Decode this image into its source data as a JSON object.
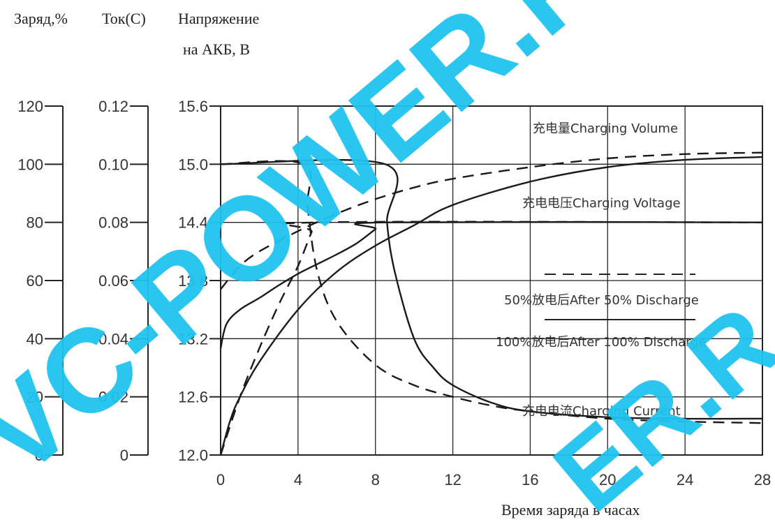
{
  "chart_data": {
    "type": "line",
    "axis_headers": {
      "charge": "Заряд,%",
      "current": "Ток(С)",
      "voltage_line1": "Напряжение",
      "voltage_line2": "на АКБ, В"
    },
    "xlabel": "Время заряда в часах",
    "x_ticks": [
      0,
      4,
      8,
      12,
      16,
      20,
      24,
      28
    ],
    "xlim": [
      0,
      28
    ],
    "voltage_ticks": [
      "12.0",
      "12.6",
      "13.2",
      "13.8",
      "14.4",
      "15.0",
      "15.6"
    ],
    "current_ticks": [
      "0",
      "0.02",
      "0.04",
      "0.06",
      "0.08",
      "0.10",
      "0.12"
    ],
    "charge_ticks": [
      "0",
      "20",
      "40",
      "60",
      "80",
      "100",
      "120"
    ],
    "ylim_voltage": [
      12.0,
      15.6
    ],
    "ylim_current": [
      0,
      0.12
    ],
    "ylim_charge": [
      0,
      120
    ],
    "grid": true,
    "annotations": {
      "charging_volume": "充电量Charging Volume",
      "charging_voltage": "充电电压Charging Voltage",
      "after_50": "50%放电后After 50% Discharge",
      "after_100": "100%放电后After 100% Discharge",
      "charging_current": "充电电流Charging Current"
    },
    "series": [
      {
        "name": "充电量Charging Volume — 50%放电后After 50% Discharge",
        "axis": "charge",
        "style": "dashed",
        "x": [
          0,
          1,
          2,
          4,
          6,
          8,
          10,
          12,
          16,
          20,
          24,
          28
        ],
        "y": [
          57,
          65,
          70,
          77,
          83,
          88,
          92,
          95,
          99,
          102,
          103.5,
          104
        ]
      },
      {
        "name": "充电量Charging Volume — 100%放电后After 100% Discharge",
        "axis": "charge",
        "style": "solid",
        "x": [
          0,
          0.5,
          1,
          2,
          4,
          6,
          8,
          10,
          12,
          16,
          20,
          24,
          28
        ],
        "y": [
          0,
          12,
          20,
          32,
          50,
          63,
          72,
          79,
          86,
          94,
          99,
          101.5,
          102.5
        ]
      },
      {
        "name": "充电电压Charging Voltage — 50%放电后After 50% Discharge",
        "axis": "voltage",
        "style": "dashed",
        "x": [
          0,
          1,
          2,
          3,
          4,
          4.7,
          5,
          28
        ],
        "y": [
          12.0,
          12.6,
          13.1,
          13.55,
          13.95,
          14.3,
          14.4,
          14.4
        ]
      },
      {
        "name": "充电电压Charging Voltage — 100%放电后After 100% Discharge",
        "axis": "voltage",
        "style": "solid",
        "x": [
          0,
          0.3,
          1,
          2,
          3,
          4,
          5,
          6,
          7,
          8,
          8.5,
          28
        ],
        "y": [
          13.1,
          13.35,
          13.5,
          13.62,
          13.75,
          13.87,
          13.97,
          14.07,
          14.18,
          14.33,
          14.4,
          14.4
        ]
      },
      {
        "name": "充电电流Charging Current — 50%放电后After 50% Discharge",
        "axis": "current",
        "style": "dashed",
        "x": [
          0,
          4.3,
          4.5,
          5,
          6,
          8,
          10,
          12,
          14,
          16,
          20,
          24,
          28
        ],
        "y": [
          0.1,
          0.1,
          0.085,
          0.063,
          0.046,
          0.031,
          0.024,
          0.02,
          0.017,
          0.015,
          0.0125,
          0.0115,
          0.011
        ]
      },
      {
        "name": "充电电流Charging Current — 100%放电后After 100% Discharge",
        "axis": "current",
        "style": "solid",
        "x": [
          0,
          8.5,
          8.6,
          9,
          10,
          11,
          12,
          14,
          16,
          20,
          24,
          28
        ],
        "y": [
          0.1,
          0.1,
          0.08,
          0.063,
          0.04,
          0.03,
          0.024,
          0.018,
          0.015,
          0.013,
          0.0125,
          0.0125
        ]
      }
    ]
  },
  "watermark": {
    "text_top": "VC-POWER.R",
    "text_bottom": "ER.R",
    "color": "#1fc3ef"
  }
}
